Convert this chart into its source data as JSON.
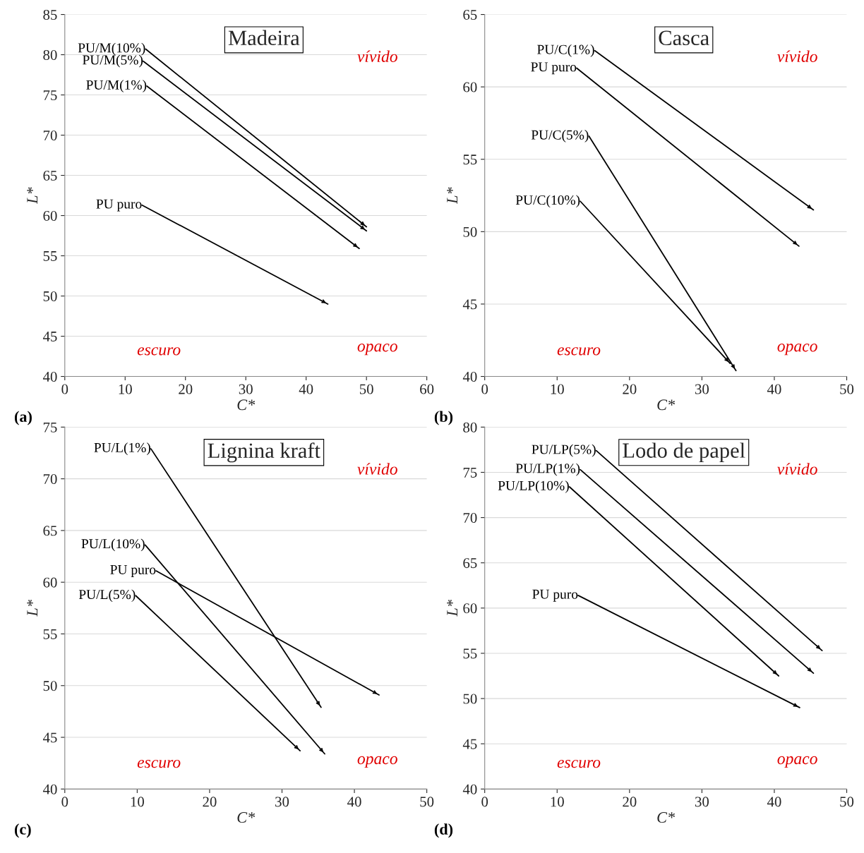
{
  "chart_data": [
    {
      "type": "line",
      "title": "Madeira",
      "xlabel": "C*",
      "ylabel": "L*",
      "xlim": [
        0,
        60
      ],
      "ylim": [
        40,
        85
      ],
      "xticks": [
        0,
        10,
        20,
        30,
        40,
        50,
        60
      ],
      "yticks": [
        40,
        45,
        50,
        55,
        60,
        65,
        70,
        75,
        80,
        85
      ],
      "grid": "y",
      "marker": "none",
      "legend": false,
      "annotations": [
        "vívido",
        "escuro",
        "opaco",
        "(a)"
      ],
      "series": [
        {
          "name": "PU/M(10%)",
          "color": "#000000",
          "x": [
            13.4,
            50.0
          ],
          "values": [
            80.7,
            58.6
          ]
        },
        {
          "name": "PU/M(5%)",
          "color": "#000000",
          "x": [
            13.0,
            50.0
          ],
          "values": [
            79.2,
            58.1
          ]
        },
        {
          "name": "PU/M(1%)",
          "color": "#000000",
          "x": [
            13.6,
            48.8
          ],
          "values": [
            76.1,
            55.9
          ]
        },
        {
          "name": "PU puro",
          "color": "#000000",
          "x": [
            12.8,
            43.6
          ],
          "values": [
            61.3,
            49.0
          ]
        }
      ]
    },
    {
      "type": "line",
      "title": "Casca",
      "xlabel": "C*",
      "ylabel": "L*",
      "xlim": [
        0,
        50
      ],
      "ylim": [
        40,
        65
      ],
      "xticks": [
        0,
        10,
        20,
        30,
        40,
        50
      ],
      "yticks": [
        40,
        45,
        50,
        55,
        60,
        65
      ],
      "grid": "y",
      "marker": "none",
      "legend": false,
      "annotations": [
        "vívido",
        "escuro",
        "opaco",
        "(b)"
      ],
      "series": [
        {
          "name": "PU/C(1%)",
          "color": "#000000",
          "x": [
            15.2,
            45.4
          ],
          "values": [
            62.5,
            51.5
          ]
        },
        {
          "name": "PU puro",
          "color": "#000000",
          "x": [
            12.7,
            43.4
          ],
          "values": [
            61.3,
            49.0
          ]
        },
        {
          "name": "PU/C(5%)",
          "color": "#000000",
          "x": [
            14.4,
            34.7
          ],
          "values": [
            56.6,
            40.4
          ]
        },
        {
          "name": "PU/C(10%)",
          "color": "#000000",
          "x": [
            13.2,
            33.9
          ],
          "values": [
            52.1,
            40.9
          ]
        }
      ]
    },
    {
      "type": "line",
      "title": "Lignina kraft",
      "xlabel": "C*",
      "ylabel": "L*",
      "xlim": [
        0,
        50
      ],
      "ylim": [
        40,
        75
      ],
      "xticks": [
        0,
        10,
        20,
        30,
        40,
        50
      ],
      "yticks": [
        40,
        45,
        50,
        55,
        60,
        65,
        70,
        75
      ],
      "grid": "y",
      "marker": "none",
      "legend": false,
      "annotations": [
        "vívido",
        "escuro",
        "opaco",
        "(c)"
      ],
      "series": [
        {
          "name": "PU/L(1%)",
          "color": "#000000",
          "x": [
            11.9,
            35.4
          ],
          "values": [
            72.9,
            47.9
          ]
        },
        {
          "name": "PU/L(10%)",
          "color": "#000000",
          "x": [
            11.1,
            35.9
          ],
          "values": [
            63.6,
            43.4
          ]
        },
        {
          "name": "PU puro",
          "color": "#000000",
          "x": [
            12.6,
            43.4
          ],
          "values": [
            61.1,
            49.1
          ]
        },
        {
          "name": "PU/L(5%)",
          "color": "#000000",
          "x": [
            9.8,
            32.5
          ],
          "values": [
            58.7,
            43.7
          ]
        }
      ]
    },
    {
      "type": "line",
      "title": "Lodo de papel",
      "xlabel": "C*",
      "ylabel": "L*",
      "xlim": [
        0,
        50
      ],
      "ylim": [
        40,
        80
      ],
      "xticks": [
        0,
        10,
        20,
        30,
        40,
        50
      ],
      "yticks": [
        40,
        45,
        50,
        55,
        60,
        65,
        70,
        75,
        80
      ],
      "grid": "y",
      "marker": "none",
      "legend": false,
      "annotations": [
        "vívido",
        "escuro",
        "opaco",
        "(d)"
      ],
      "series": [
        {
          "name": "PU/LP(5%)",
          "color": "#000000",
          "x": [
            15.4,
            46.6
          ],
          "values": [
            77.4,
            55.3
          ]
        },
        {
          "name": "PU/LP(1%)",
          "color": "#000000",
          "x": [
            13.2,
            45.4
          ],
          "values": [
            75.3,
            52.8
          ]
        },
        {
          "name": "PU/LP(10%)",
          "color": "#000000",
          "x": [
            11.7,
            40.6
          ],
          "values": [
            73.4,
            52.5
          ]
        },
        {
          "name": "PU puro",
          "color": "#000000",
          "x": [
            12.9,
            43.5
          ],
          "values": [
            61.4,
            49.0
          ]
        }
      ]
    }
  ]
}
